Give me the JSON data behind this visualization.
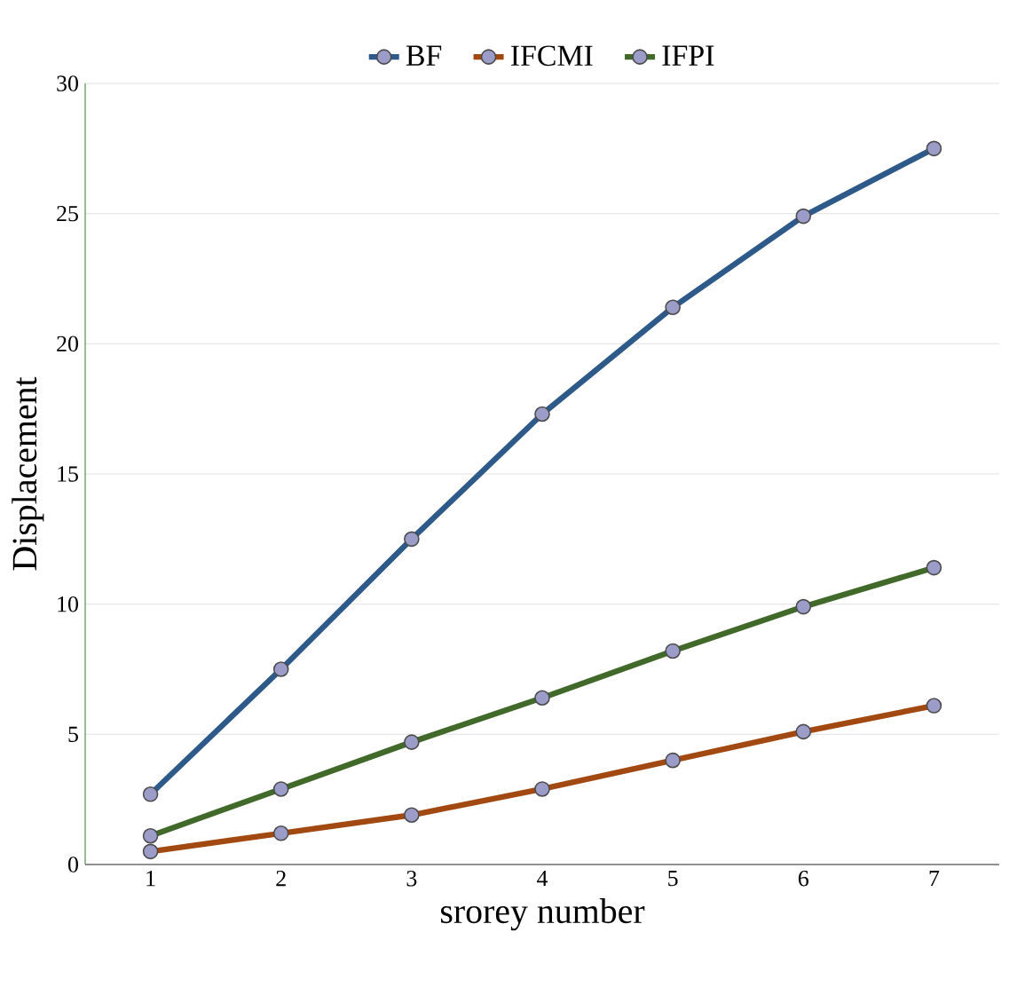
{
  "chart_data": {
    "type": "line",
    "xlabel": "srorey number",
    "ylabel": "Displacement",
    "categories": [
      "1",
      "2",
      "3",
      "4",
      "5",
      "6",
      "7"
    ],
    "series": [
      {
        "name": "BF",
        "color": "#2e5a8a",
        "values": [
          2.7,
          7.5,
          12.5,
          17.3,
          21.4,
          24.9,
          27.5
        ]
      },
      {
        "name": "IFCMI",
        "color": "#a24811",
        "values": [
          0.5,
          1.2,
          1.9,
          2.9,
          4.0,
          5.1,
          6.1
        ]
      },
      {
        "name": "IFPI",
        "color": "#40692a",
        "values": [
          1.1,
          2.9,
          4.7,
          6.4,
          8.2,
          9.9,
          11.4
        ]
      }
    ],
    "ylim": [
      0,
      30
    ],
    "yticks": [
      0,
      5,
      10,
      15,
      20,
      25,
      30
    ],
    "grid": "y",
    "legend": "top",
    "marker": "circle",
    "line_style": "solid"
  }
}
